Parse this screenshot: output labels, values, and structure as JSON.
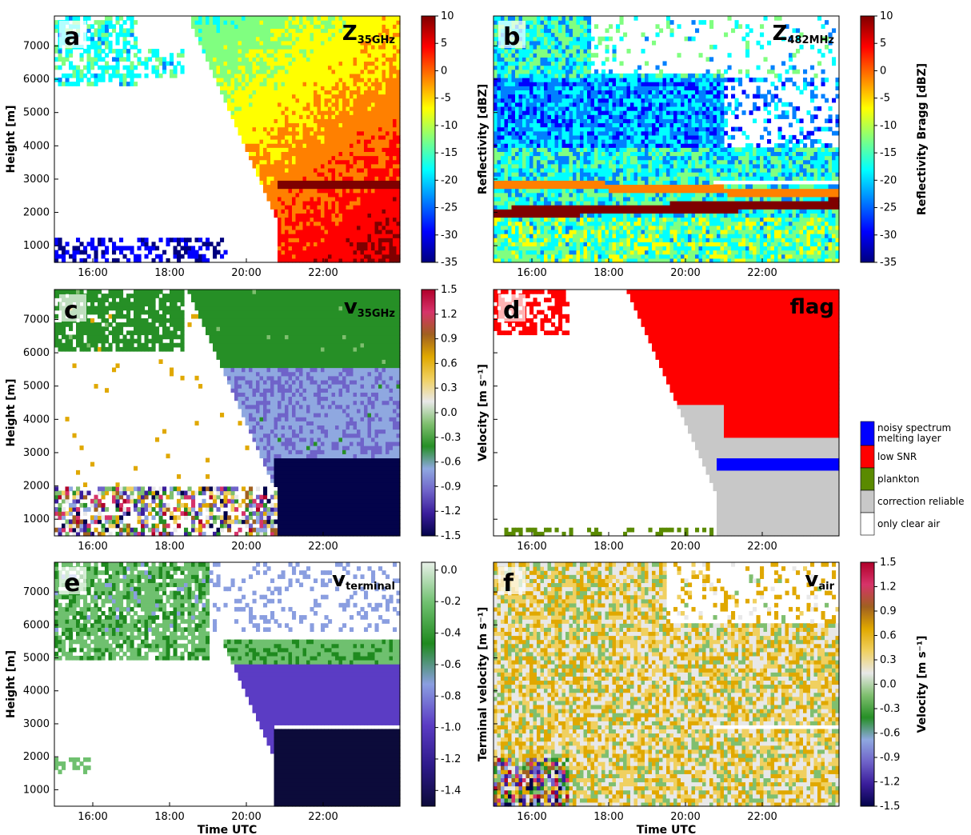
{
  "colormaps": {
    "jet": [
      "#00007f",
      "#0000ff",
      "#0080ff",
      "#00ffff",
      "#80ff80",
      "#ffff00",
      "#ff8000",
      "#ff0000",
      "#7f0000"
    ],
    "vel": [
      "#03034a",
      "#3a1d9b",
      "#6f63c9",
      "#8fa8e0",
      "#268f26",
      "#7fbf6f",
      "#e8e8e8",
      "#f0d060",
      "#e0a800",
      "#a06020",
      "#d6336a",
      "#b0002a"
    ],
    "term": [
      "#0c0b3a",
      "#2e1a8a",
      "#5b3cc4",
      "#8a9ee0",
      "#1f8a1f",
      "#6fc06f",
      "#e8f0e8"
    ]
  },
  "chart_data": [
    {
      "id": "a",
      "type": "heatmap",
      "panel_letter": "a",
      "panel_label": "Z",
      "panel_label_sub": "35GHz",
      "ylabel": "Height [m]",
      "xlabel": "",
      "x_ticks": [
        "16:00",
        "18:00",
        "20:00",
        "22:00"
      ],
      "y_ticks": [
        1000,
        2000,
        3000,
        4000,
        5000,
        6000,
        7000
      ],
      "ylim": [
        500,
        7900
      ],
      "xlim_hours": [
        15,
        24
      ],
      "colorbar": {
        "label": "Reflectivity [dBZ]",
        "ticks": [
          10,
          5,
          0,
          -5,
          -10,
          -15,
          -20,
          -25,
          -30,
          -35
        ],
        "range": [
          -35,
          10
        ],
        "cmap": "jet"
      }
    },
    {
      "id": "b",
      "type": "heatmap",
      "panel_letter": "b",
      "panel_label": "Z",
      "panel_label_sub": "482MHz",
      "ylabel": "",
      "xlabel": "",
      "x_ticks": [
        "16:00",
        "18:00",
        "20:00",
        "22:00"
      ],
      "y_ticks": [],
      "ylim": [
        500,
        7900
      ],
      "xlim_hours": [
        15,
        24
      ],
      "colorbar": {
        "label": "Reflectivity Bragg [dBZ]",
        "ticks": [
          10,
          5,
          0,
          -5,
          -10,
          -15,
          -20,
          -25,
          -30,
          -35
        ],
        "range": [
          -35,
          10
        ],
        "cmap": "jet"
      }
    },
    {
      "id": "c",
      "type": "heatmap",
      "panel_letter": "c",
      "panel_label": "v",
      "panel_label_sub": "35GHz",
      "ylabel": "Height [m]",
      "xlabel": "",
      "x_ticks": [
        "16:00",
        "18:00",
        "20:00",
        "22:00"
      ],
      "y_ticks": [
        1000,
        2000,
        3000,
        4000,
        5000,
        6000,
        7000
      ],
      "ylim": [
        500,
        7900
      ],
      "xlim_hours": [
        15,
        24
      ],
      "colorbar": {
        "label": "Velocity [m s⁻¹]",
        "ticks": [
          1.5,
          1.2,
          0.9,
          0.6,
          0.3,
          0.0,
          -0.3,
          -0.6,
          -0.9,
          -1.2,
          -1.5
        ],
        "range": [
          -1.5,
          1.5
        ],
        "cmap": "vel"
      }
    },
    {
      "id": "d",
      "type": "heatmap",
      "panel_letter": "d",
      "panel_label": "flag",
      "panel_label_sub": "",
      "ylabel": "",
      "xlabel": "",
      "x_ticks": [
        "16:00",
        "18:00",
        "20:00",
        "22:00"
      ],
      "y_ticks": [],
      "ylim": [
        500,
        7900
      ],
      "xlim_hours": [
        15,
        24
      ],
      "legend": [
        {
          "label": "noisy spectrum",
          "color": "#ffffff"
        },
        {
          "label": "melting layer",
          "color": "#0000ff"
        },
        {
          "label": "low SNR",
          "color": "#ff0000"
        },
        {
          "label": "plankton",
          "color": "#5a8a00"
        },
        {
          "label": "correction reliable",
          "color": "#c8c8c8"
        },
        {
          "label": "only clear air",
          "color": "#ffffff"
        }
      ]
    },
    {
      "id": "e",
      "type": "heatmap",
      "panel_letter": "e",
      "panel_label": "v",
      "panel_label_sub": "terminal",
      "ylabel": "Height [m]",
      "xlabel": "Time UTC",
      "x_ticks": [
        "16:00",
        "18:00",
        "20:00",
        "22:00"
      ],
      "y_ticks": [
        1000,
        2000,
        3000,
        4000,
        5000,
        6000,
        7000
      ],
      "ylim": [
        500,
        7900
      ],
      "xlim_hours": [
        15,
        24
      ],
      "colorbar": {
        "label": "Terminal velocity [m s⁻¹]",
        "ticks": [
          0.0,
          -0.2,
          -0.4,
          -0.6,
          -0.8,
          -1.0,
          -1.2,
          -1.4
        ],
        "range": [
          -1.5,
          0.05
        ],
        "cmap": "term"
      }
    },
    {
      "id": "f",
      "type": "heatmap",
      "panel_letter": "f",
      "panel_label": "v",
      "panel_label_sub": "air",
      "ylabel": "",
      "xlabel": "Time UTC",
      "x_ticks": [
        "16:00",
        "18:00",
        "20:00",
        "22:00"
      ],
      "y_ticks": [],
      "ylim": [
        500,
        7900
      ],
      "xlim_hours": [
        15,
        24
      ],
      "colorbar": {
        "label": "Velocity [m s⁻¹]",
        "ticks": [
          1.5,
          1.2,
          0.9,
          0.6,
          0.3,
          0.0,
          -0.3,
          -0.6,
          -0.9,
          -1.2,
          -1.5
        ],
        "range": [
          -1.5,
          1.5
        ],
        "cmap": "vel"
      }
    }
  ]
}
